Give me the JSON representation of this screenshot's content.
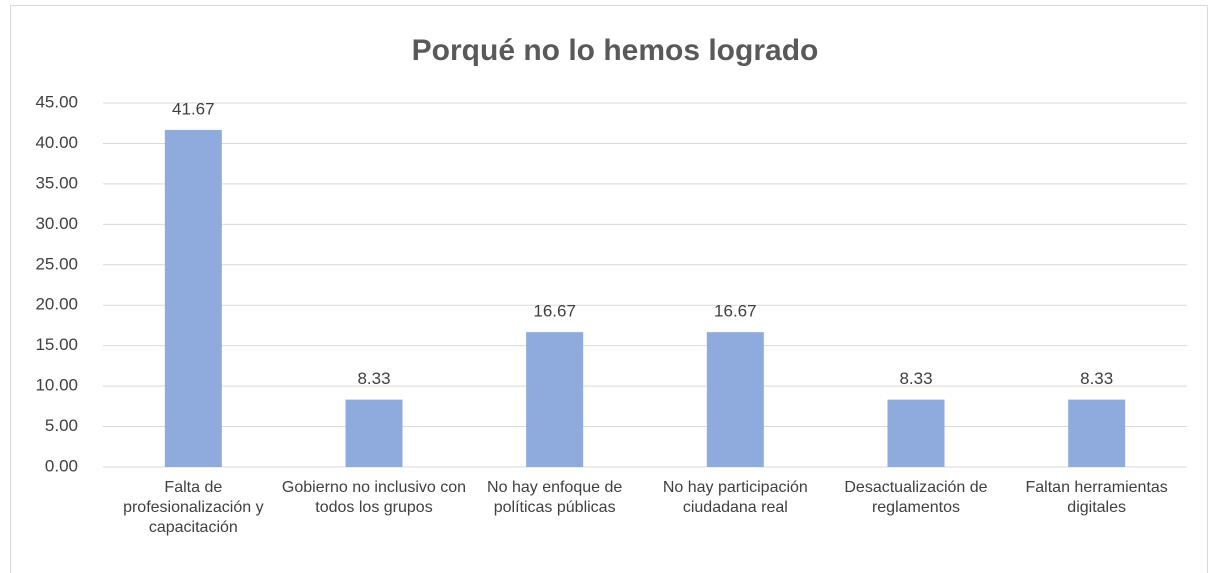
{
  "chart_data": {
    "type": "bar",
    "title": "Porqué no lo hemos logrado",
    "categories": [
      "Falta de profesionalización y capacitación",
      "Gobierno no inclusivo con todos los grupos",
      "No hay enfoque de políticas públicas",
      "No hay participación ciudadana real",
      "Desactualización de reglamentos",
      "Faltan herramientas digitales"
    ],
    "values": [
      41.67,
      8.33,
      16.67,
      16.67,
      8.33,
      8.33
    ],
    "color": "#8faadc",
    "ylim": [
      0,
      45
    ],
    "yticks": [
      {
        "value": 0,
        "label": "0.00"
      },
      {
        "value": 5,
        "label": "5.00"
      },
      {
        "value": 10,
        "label": "10.00"
      },
      {
        "value": 15,
        "label": "15.00"
      },
      {
        "value": 20,
        "label": "20.00"
      },
      {
        "value": 25,
        "label": "25.00"
      },
      {
        "value": 30,
        "label": "30.00"
      },
      {
        "value": 35,
        "label": "35.00"
      },
      {
        "value": 40,
        "label": "40.00"
      },
      {
        "value": 45,
        "label": "45.00"
      }
    ],
    "grid": true
  }
}
